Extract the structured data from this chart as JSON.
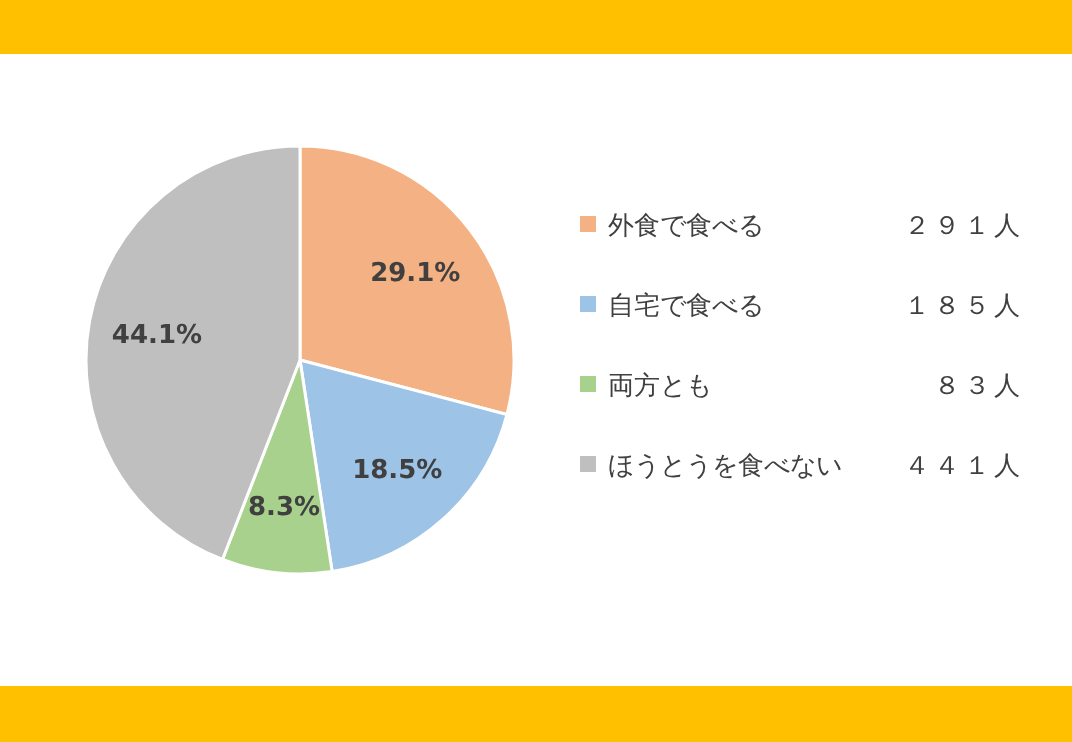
{
  "chart_data": {
    "type": "pie",
    "categories": [
      "外食で食べる",
      "自宅で食べる",
      "両方とも",
      "ほうとうを食べない"
    ],
    "values": [
      29.1,
      18.5,
      8.3,
      44.1
    ],
    "colors": [
      "#f4b183",
      "#9dc3e6",
      "#a9d18e",
      "#bfbfbf"
    ],
    "value_labels": [
      "29.1%",
      "18.5%",
      "8.3%",
      "44.1%"
    ],
    "annotations": [
      "２９１人",
      "１８５人",
      "８３人",
      "４４１人"
    ],
    "legend": "right"
  }
}
